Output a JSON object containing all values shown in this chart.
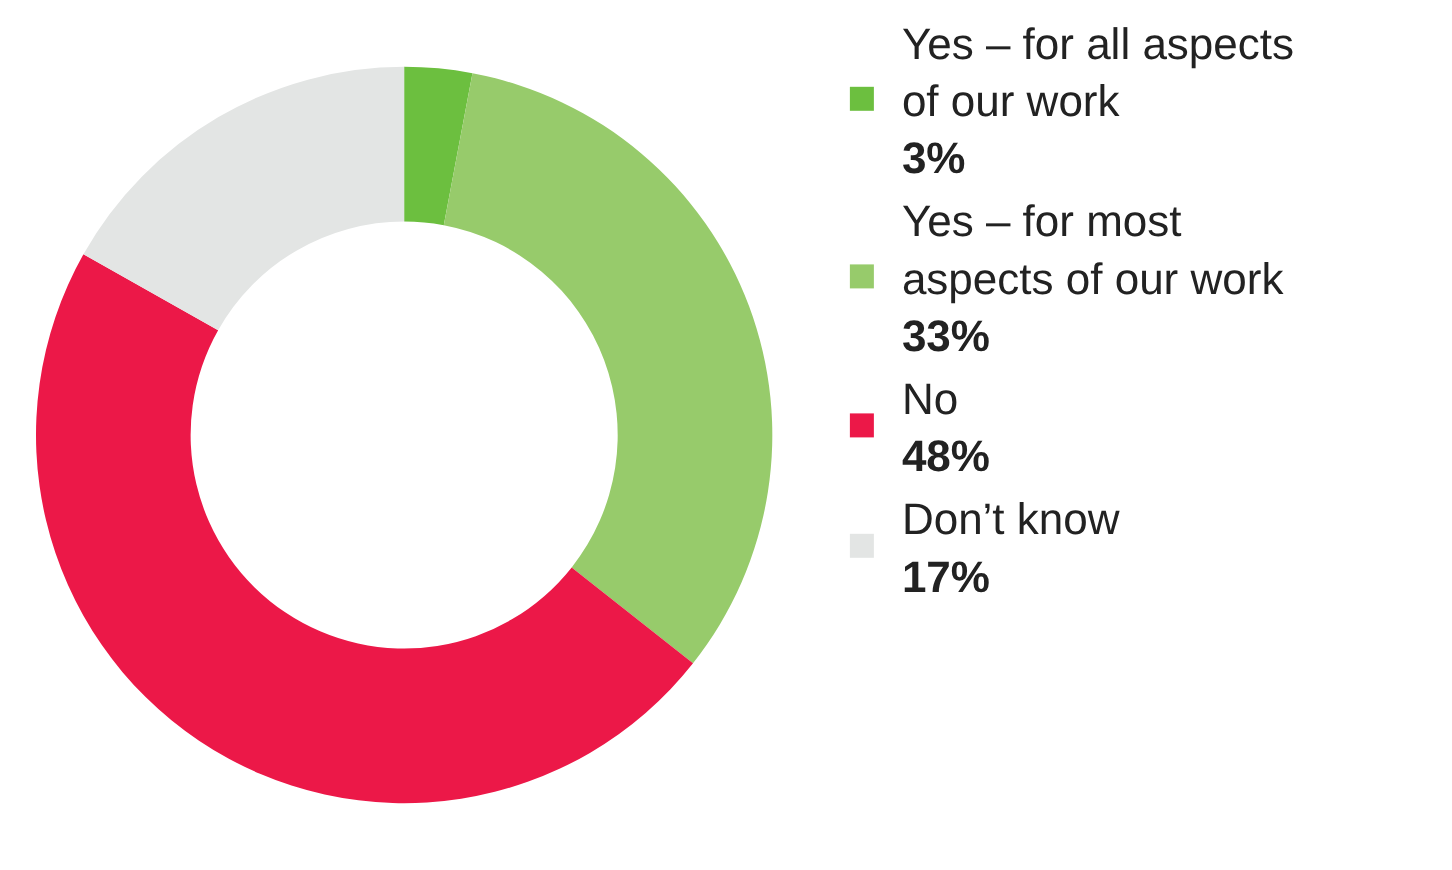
{
  "chart_data": {
    "type": "donut",
    "categories": [
      "Yes – for all aspects of our work",
      "Yes – for most aspects of our work",
      "No",
      "Don’t know"
    ],
    "values": [
      3,
      33,
      48,
      17
    ],
    "value_labels": [
      "3%",
      "33%",
      "48%",
      "17%"
    ],
    "colors": [
      "#6cbf3f",
      "#97cb6b",
      "#ec1848",
      "#e3e5e4"
    ],
    "legend": "right"
  }
}
